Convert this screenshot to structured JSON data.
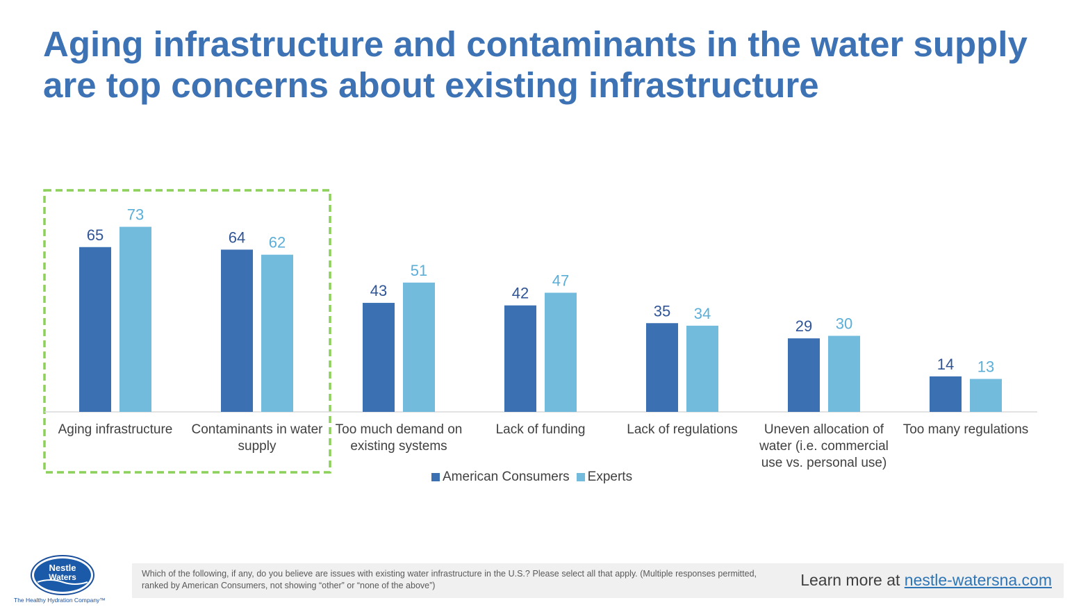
{
  "title": "Aging infrastructure and contaminants in the water supply are top concerns about existing infrastructure",
  "chart_data": {
    "type": "bar",
    "categories": [
      [
        "Aging infrastructure"
      ],
      [
        "Contaminants in water",
        "supply"
      ],
      [
        "Too much demand on",
        "existing systems"
      ],
      [
        "Lack of funding"
      ],
      [
        "Lack of regulations"
      ],
      [
        "Uneven allocation of",
        "water (i.e. commercial",
        "use vs. personal use)"
      ],
      [
        "Too many regulations"
      ]
    ],
    "series": [
      {
        "name": "American Consumers",
        "color": "#3b70b3",
        "label_color": "#2f5597",
        "values": [
          65,
          64,
          43,
          42,
          35,
          29,
          14
        ]
      },
      {
        "name": "Experts",
        "color": "#72bbdd",
        "label_color": "#5aaed8",
        "values": [
          73,
          62,
          51,
          47,
          34,
          30,
          13
        ]
      }
    ],
    "highlight": {
      "categories": [
        0,
        1
      ],
      "color": "#8cd05a",
      "style": "dashed"
    },
    "legend_position": "bottom",
    "grid": false,
    "ylim": [
      0,
      80
    ]
  },
  "footer": {
    "note": "Which of the following, if any, do you believe are issues with existing water infrastructure in the U.S.? Please select all that apply. (Multiple responses permitted, ranked by American Consumers, not showing “other” or “none of the above”)",
    "learn_more_prefix": "Learn more at ",
    "learn_more_link": "nestle-watersna.com"
  },
  "logo": {
    "line1": "Nestle",
    "line2": "Waters",
    "tagline": "The Healthy Hydration Company™"
  }
}
